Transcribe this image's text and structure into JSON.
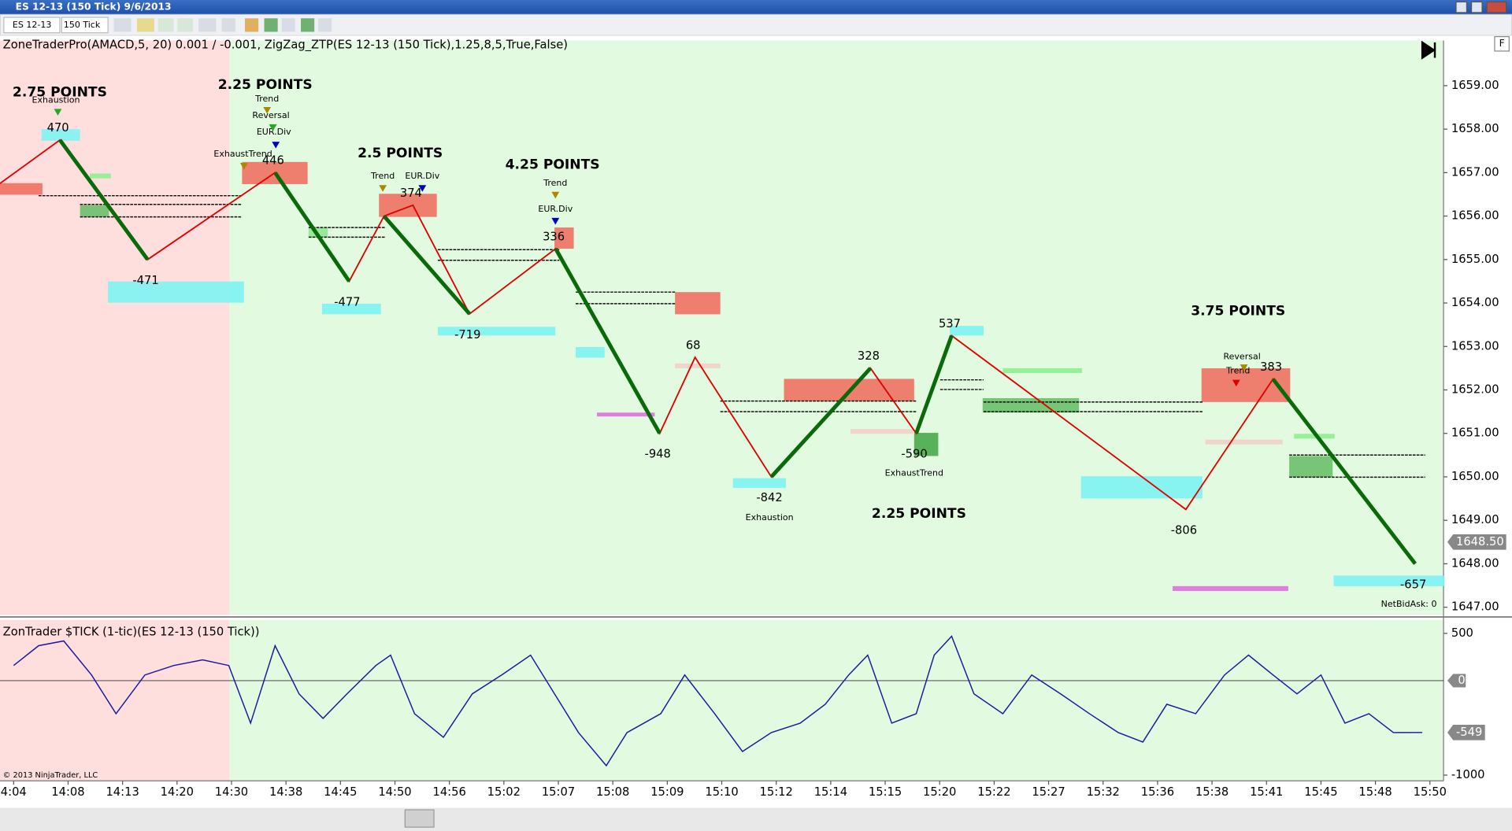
{
  "window": {
    "title": "ES 12-13 (150 Tick)  9/6/2013",
    "toolbar": [
      "ES 12-13",
      "150 Tick"
    ],
    "corner_label": "F",
    "copyright": "© 2013 NinjaTrader, LLC",
    "net_bid_ask": "NetBidAsk: 0"
  },
  "chart_data": [
    {
      "type": "line",
      "title": "ZoneTraderPro(AMACD,5, 20) 0.001  /  -0.001, ZigZag_ZTP(ES 12-13 (150 Tick),1.25,8,5,True,False)",
      "xlim": [
        -0.25,
        26.25
      ],
      "xticks": [
        {
          "value": 0,
          "label": "4:04"
        },
        {
          "value": 1,
          "label": "14:08"
        },
        {
          "value": 2,
          "label": "14:13"
        },
        {
          "value": 3,
          "label": "14:20"
        },
        {
          "value": 4,
          "label": "14:30"
        },
        {
          "value": 5,
          "label": "14:38"
        },
        {
          "value": 6,
          "label": "14:45"
        },
        {
          "value": 7,
          "label": "14:50"
        },
        {
          "value": 8,
          "label": "14:56"
        },
        {
          "value": 9,
          "label": "15:02"
        },
        {
          "value": 10,
          "label": "15:07"
        },
        {
          "value": 11,
          "label": "15:08"
        },
        {
          "value": 12,
          "label": "15:09"
        },
        {
          "value": 13,
          "label": "15:10"
        },
        {
          "value": 14,
          "label": "15:12"
        },
        {
          "value": 15,
          "label": "15:14"
        },
        {
          "value": 16,
          "label": "15:15"
        },
        {
          "value": 17,
          "label": "15:20"
        },
        {
          "value": 18,
          "label": "15:22"
        },
        {
          "value": 19,
          "label": "15:27"
        },
        {
          "value": 20,
          "label": "15:32"
        },
        {
          "value": 21,
          "label": "15:36"
        },
        {
          "value": 22,
          "label": "15:38"
        },
        {
          "value": 23,
          "label": "15:41"
        },
        {
          "value": 24,
          "label": "15:45"
        },
        {
          "value": 25,
          "label": "15:48"
        },
        {
          "value": 26,
          "label": "15:50"
        }
      ],
      "ylim": [
        1646.82,
        1660.04
      ],
      "yticks": [
        {
          "value": 1647,
          "label": "1647.00"
        },
        {
          "value": 1648,
          "label": "1648.00"
        },
        {
          "value": 1649,
          "label": "1649.00"
        },
        {
          "value": 1650,
          "label": "1650.00"
        },
        {
          "value": 1651,
          "label": "1651.00"
        },
        {
          "value": 1652,
          "label": "1652.00"
        },
        {
          "value": 1653,
          "label": "1653.00"
        },
        {
          "value": 1654,
          "label": "1654.00"
        },
        {
          "value": 1655,
          "label": "1655.00"
        },
        {
          "value": 1656,
          "label": "1656.00"
        },
        {
          "value": 1657,
          "label": "1657.00"
        },
        {
          "value": 1658,
          "label": "1658.00"
        },
        {
          "value": 1659,
          "label": "1659.00"
        }
      ],
      "series": [
        {
          "color": "#e00000",
          "x": [
            -0.25,
            0.85,
            2.46,
            4.8,
            6.16,
            6.8,
            7.33,
            8.37,
            9.95,
            11.86,
            12.51,
            13.91,
            15.73,
            16.57,
            17.22,
            21.52,
            23.12,
            25.73
          ],
          "values": [
            1656.75,
            1657.75,
            1655.0,
            1657.0,
            1654.5,
            1656.0,
            1656.25,
            1653.75,
            1655.25,
            1651.0,
            1652.75,
            1650.0,
            1652.5,
            1651.0,
            1653.25,
            1649.25,
            1652.25,
            1648.0
          ],
          "point_labels": [
            null,
            470,
            -471,
            446,
            -477,
            null,
            374,
            -719,
            336,
            -948,
            68,
            -842,
            328,
            -590,
            537,
            -806,
            383,
            -657
          ]
        },
        {
          "color": "#0a6a0a",
          "x": [
            0.85,
            2.46
          ],
          "values": [
            1657.75,
            1655.0
          ]
        },
        {
          "color": "#0a6a0a",
          "x": [
            4.8,
            6.16
          ],
          "values": [
            1657.0,
            1654.5
          ]
        },
        {
          "color": "#0a6a0a",
          "x": [
            6.8,
            8.37
          ],
          "values": [
            1656.0,
            1653.75
          ]
        },
        {
          "color": "#0a6a0a",
          "x": [
            9.95,
            11.86
          ],
          "values": [
            1655.25,
            1651.0
          ]
        },
        {
          "color": "#0a6a0a",
          "x": [
            13.91,
            15.73
          ],
          "values": [
            1650.0,
            1652.5
          ]
        },
        {
          "color": "#0a6a0a",
          "x": [
            16.57,
            17.22
          ],
          "values": [
            1651.0,
            1653.25
          ]
        },
        {
          "color": "#0a6a0a",
          "x": [
            23.12,
            25.73
          ],
          "values": [
            1652.25,
            1648.0
          ]
        }
      ],
      "annotations": [
        "2.75 POINTS",
        "2.25 POINTS",
        "2.5 POINTS",
        "4.25 POINTS",
        "2.25 POINTS",
        "3.75 POINTS"
      ],
      "signals": [
        "Exhaustion",
        "Trend",
        "Reversal",
        "EUR.Div",
        "ExhaustTrend",
        "Trend",
        "EUR.Div",
        "Trend",
        "EUR.Div",
        "ExhaustTrend",
        "Exhaustion",
        "Reversal",
        "Trend"
      ],
      "last_price": {
        "value": 1648.5,
        "label": "1648.50"
      }
    },
    {
      "type": "line",
      "title": "ZonTrader $TICK (1-tic)(ES 12-13 (150 Tick))",
      "xlim": [
        -0.25,
        26.25
      ],
      "ylim": [
        -1061,
        643
      ],
      "yticks": [
        500,
        0,
        -1000
      ],
      "series": [
        {
          "color": "#1a1aa0",
          "x": [
            0,
            0.46,
            0.92,
            1.43,
            1.88,
            2.41,
            2.94,
            3.47,
            3.95,
            4.35,
            4.8,
            5.24,
            5.68,
            6.12,
            6.65,
            6.92,
            7.36,
            7.89,
            8.42,
            8.96,
            9.49,
            9.93,
            10.37,
            10.88,
            11.26,
            11.88,
            12.32,
            12.87,
            13.38,
            13.91,
            14.44,
            14.9,
            15.33,
            15.68,
            16.12,
            16.57,
            16.9,
            17.22,
            17.63,
            18.16,
            18.69,
            19.22,
            19.75,
            20.28,
            20.73,
            21.17,
            21.7,
            22.23,
            22.67,
            23.12,
            23.56,
            24.0,
            24.44,
            24.88,
            25.33,
            25.86
          ],
          "values": [
            160,
            370,
            420,
            60,
            -350,
            60,
            160,
            220,
            160,
            -450,
            370,
            -140,
            -400,
            -140,
            160,
            270,
            -350,
            -600,
            -140,
            60,
            270,
            -140,
            -550,
            -900,
            -550,
            -350,
            60,
            -350,
            -750,
            -550,
            -450,
            -250,
            60,
            270,
            -450,
            -350,
            270,
            470,
            -140,
            -350,
            60,
            -140,
            -350,
            -550,
            -650,
            -250,
            -350,
            60,
            270,
            60,
            -140,
            60,
            -450,
            -350,
            -550,
            -549
          ]
        }
      ],
      "last_value": -549
    }
  ]
}
